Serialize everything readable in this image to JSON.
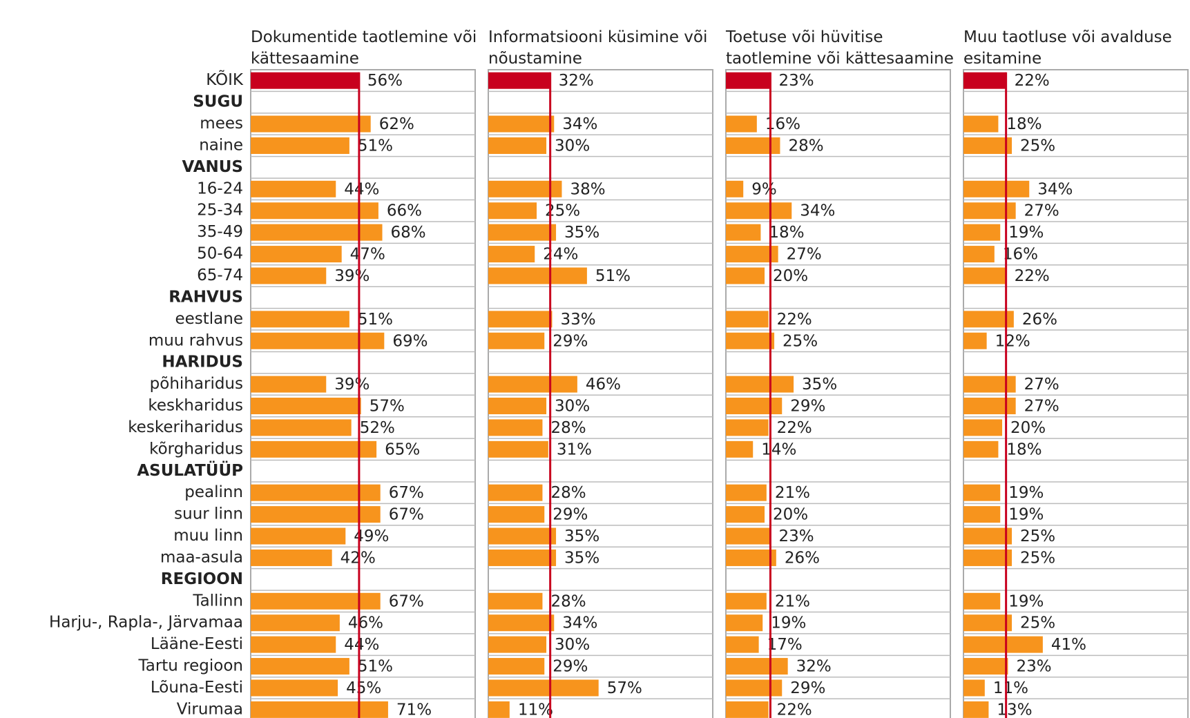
{
  "chart_data": {
    "type": "bar",
    "categories": [
      "KÕIK",
      "SUGU",
      "mees",
      "naine",
      "VANUS",
      "16-24",
      "25-34",
      "35-49",
      "50-64",
      "65-74",
      "RAHVUS",
      "eestlane",
      "muu rahvus",
      "HARIDUS",
      "põhiharidus",
      "keskharidus",
      "keskeriharidus",
      "kõrgharidus",
      "ASULATÜÜP",
      "pealinn",
      "suur linn",
      "muu linn",
      "maa-asula",
      "REGIOON",
      "Tallinn",
      "Harju-, Rapla-, Järvamaa",
      "Lääne-Eesti",
      "Tartu regioon",
      "Lõuna-Eesti",
      "Virumaa"
    ],
    "group_headers": [
      1,
      4,
      10,
      13,
      18,
      23
    ],
    "xlim": [
      0,
      116
    ],
    "total_color": "#c8001e",
    "series": [
      {
        "name": "Dokumentide taotlemine või kättesaamine",
        "color": "#f7941d",
        "values": [
          56,
          null,
          62,
          51,
          null,
          44,
          66,
          68,
          47,
          39,
          null,
          51,
          69,
          null,
          39,
          57,
          52,
          65,
          null,
          67,
          67,
          49,
          42,
          null,
          67,
          46,
          44,
          51,
          45,
          71
        ],
        "value_labels": [
          "56%",
          null,
          "62%",
          "51%",
          null,
          "44%",
          "66%",
          "68%",
          "47%",
          "39%",
          null,
          "51%",
          "69%",
          null,
          "39%",
          "57%",
          "52%",
          "65%",
          null,
          "67%",
          "67%",
          "49%",
          "42%",
          null,
          "67%",
          "46%",
          "44%",
          "51%",
          "45%",
          "71%"
        ]
      },
      {
        "name": "Informatsiooni küsimine või nõustamine",
        "color": "#f7941d",
        "values": [
          32,
          null,
          34,
          30,
          null,
          38,
          25,
          35,
          24,
          51,
          null,
          33,
          29,
          null,
          46,
          30,
          28,
          31,
          null,
          28,
          29,
          35,
          35,
          null,
          28,
          34,
          30,
          29,
          57,
          11
        ],
        "value_labels": [
          "32%",
          null,
          "34%",
          "30%",
          null,
          "38%",
          "25%",
          "35%",
          "24%",
          "51%",
          null,
          "33%",
          "29%",
          null,
          "46%",
          "30%",
          "28%",
          "31%",
          null,
          "28%",
          "29%",
          "35%",
          "35%",
          null,
          "28%",
          "34%",
          "30%",
          "29%",
          "57%",
          "11%"
        ]
      },
      {
        "name": "Toetuse või hüvitise taotlemine või kättesaamine",
        "color": "#f7941d",
        "values": [
          23,
          null,
          16,
          28,
          null,
          9,
          34,
          18,
          27,
          20,
          null,
          22,
          25,
          null,
          35,
          29,
          22,
          14,
          null,
          21,
          20,
          23,
          26,
          null,
          21,
          19,
          17,
          32,
          29,
          22
        ],
        "value_labels": [
          "23%",
          null,
          "16%",
          "28%",
          null,
          "9%",
          "34%",
          "18%",
          "27%",
          "20%",
          null,
          "22%",
          "25%",
          null,
          "35%",
          "29%",
          "22%",
          "14%",
          null,
          "21%",
          "20%",
          "23%",
          "26%",
          null,
          "21%",
          "19%",
          "17%",
          "32%",
          "29%",
          "22%"
        ]
      },
      {
        "name": "Muu taotluse või avalduse esitamine",
        "color": "#f7941d",
        "values": [
          22,
          null,
          18,
          25,
          null,
          34,
          27,
          19,
          16,
          22,
          null,
          26,
          12,
          null,
          27,
          27,
          20,
          18,
          null,
          19,
          19,
          25,
          25,
          null,
          19,
          25,
          41,
          23,
          11,
          13
        ],
        "value_labels": [
          "22%",
          null,
          "18%",
          "25%",
          null,
          "34%",
          "27%",
          "19%",
          "16%",
          "22%",
          null,
          "26%",
          "12%",
          null,
          "27%",
          "27%",
          "20%",
          "18%",
          null,
          "19%",
          "19%",
          "25%",
          "25%",
          null,
          "19%",
          "25%",
          "41%",
          "23%",
          "11%",
          "13%"
        ]
      }
    ]
  }
}
